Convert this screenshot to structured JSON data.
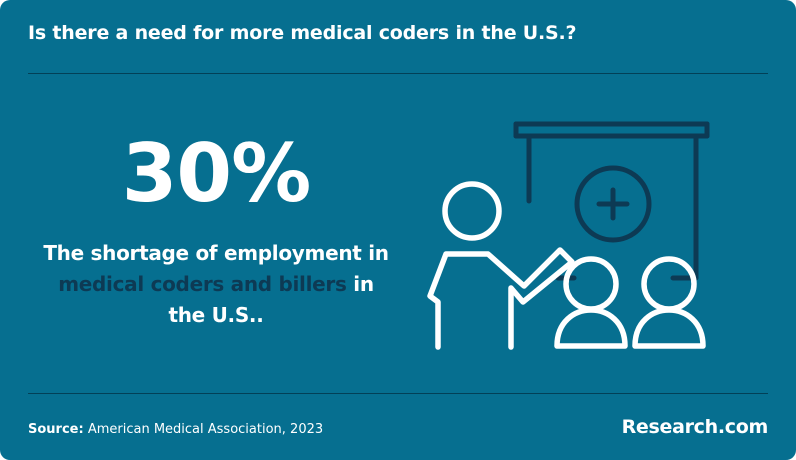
{
  "header": {
    "title": "Is there a need for more medical coders in the U.S.?"
  },
  "stat": {
    "value": "30%",
    "description_pre": "The shortage of employment in",
    "description_highlight": "medical coders and billers",
    "description_post": "in the U.S.."
  },
  "illustration": {
    "icon": "presenter-medical-board-icon"
  },
  "footer": {
    "source_label": "Source:",
    "source_text": "American Medical Association, 2023",
    "brand": "Research.com"
  },
  "colors": {
    "background": "#066f90",
    "text": "#ffffff",
    "highlight_text": "#0d3a54",
    "board_stroke": "#0d3a54",
    "figure_stroke": "#ffffff"
  }
}
